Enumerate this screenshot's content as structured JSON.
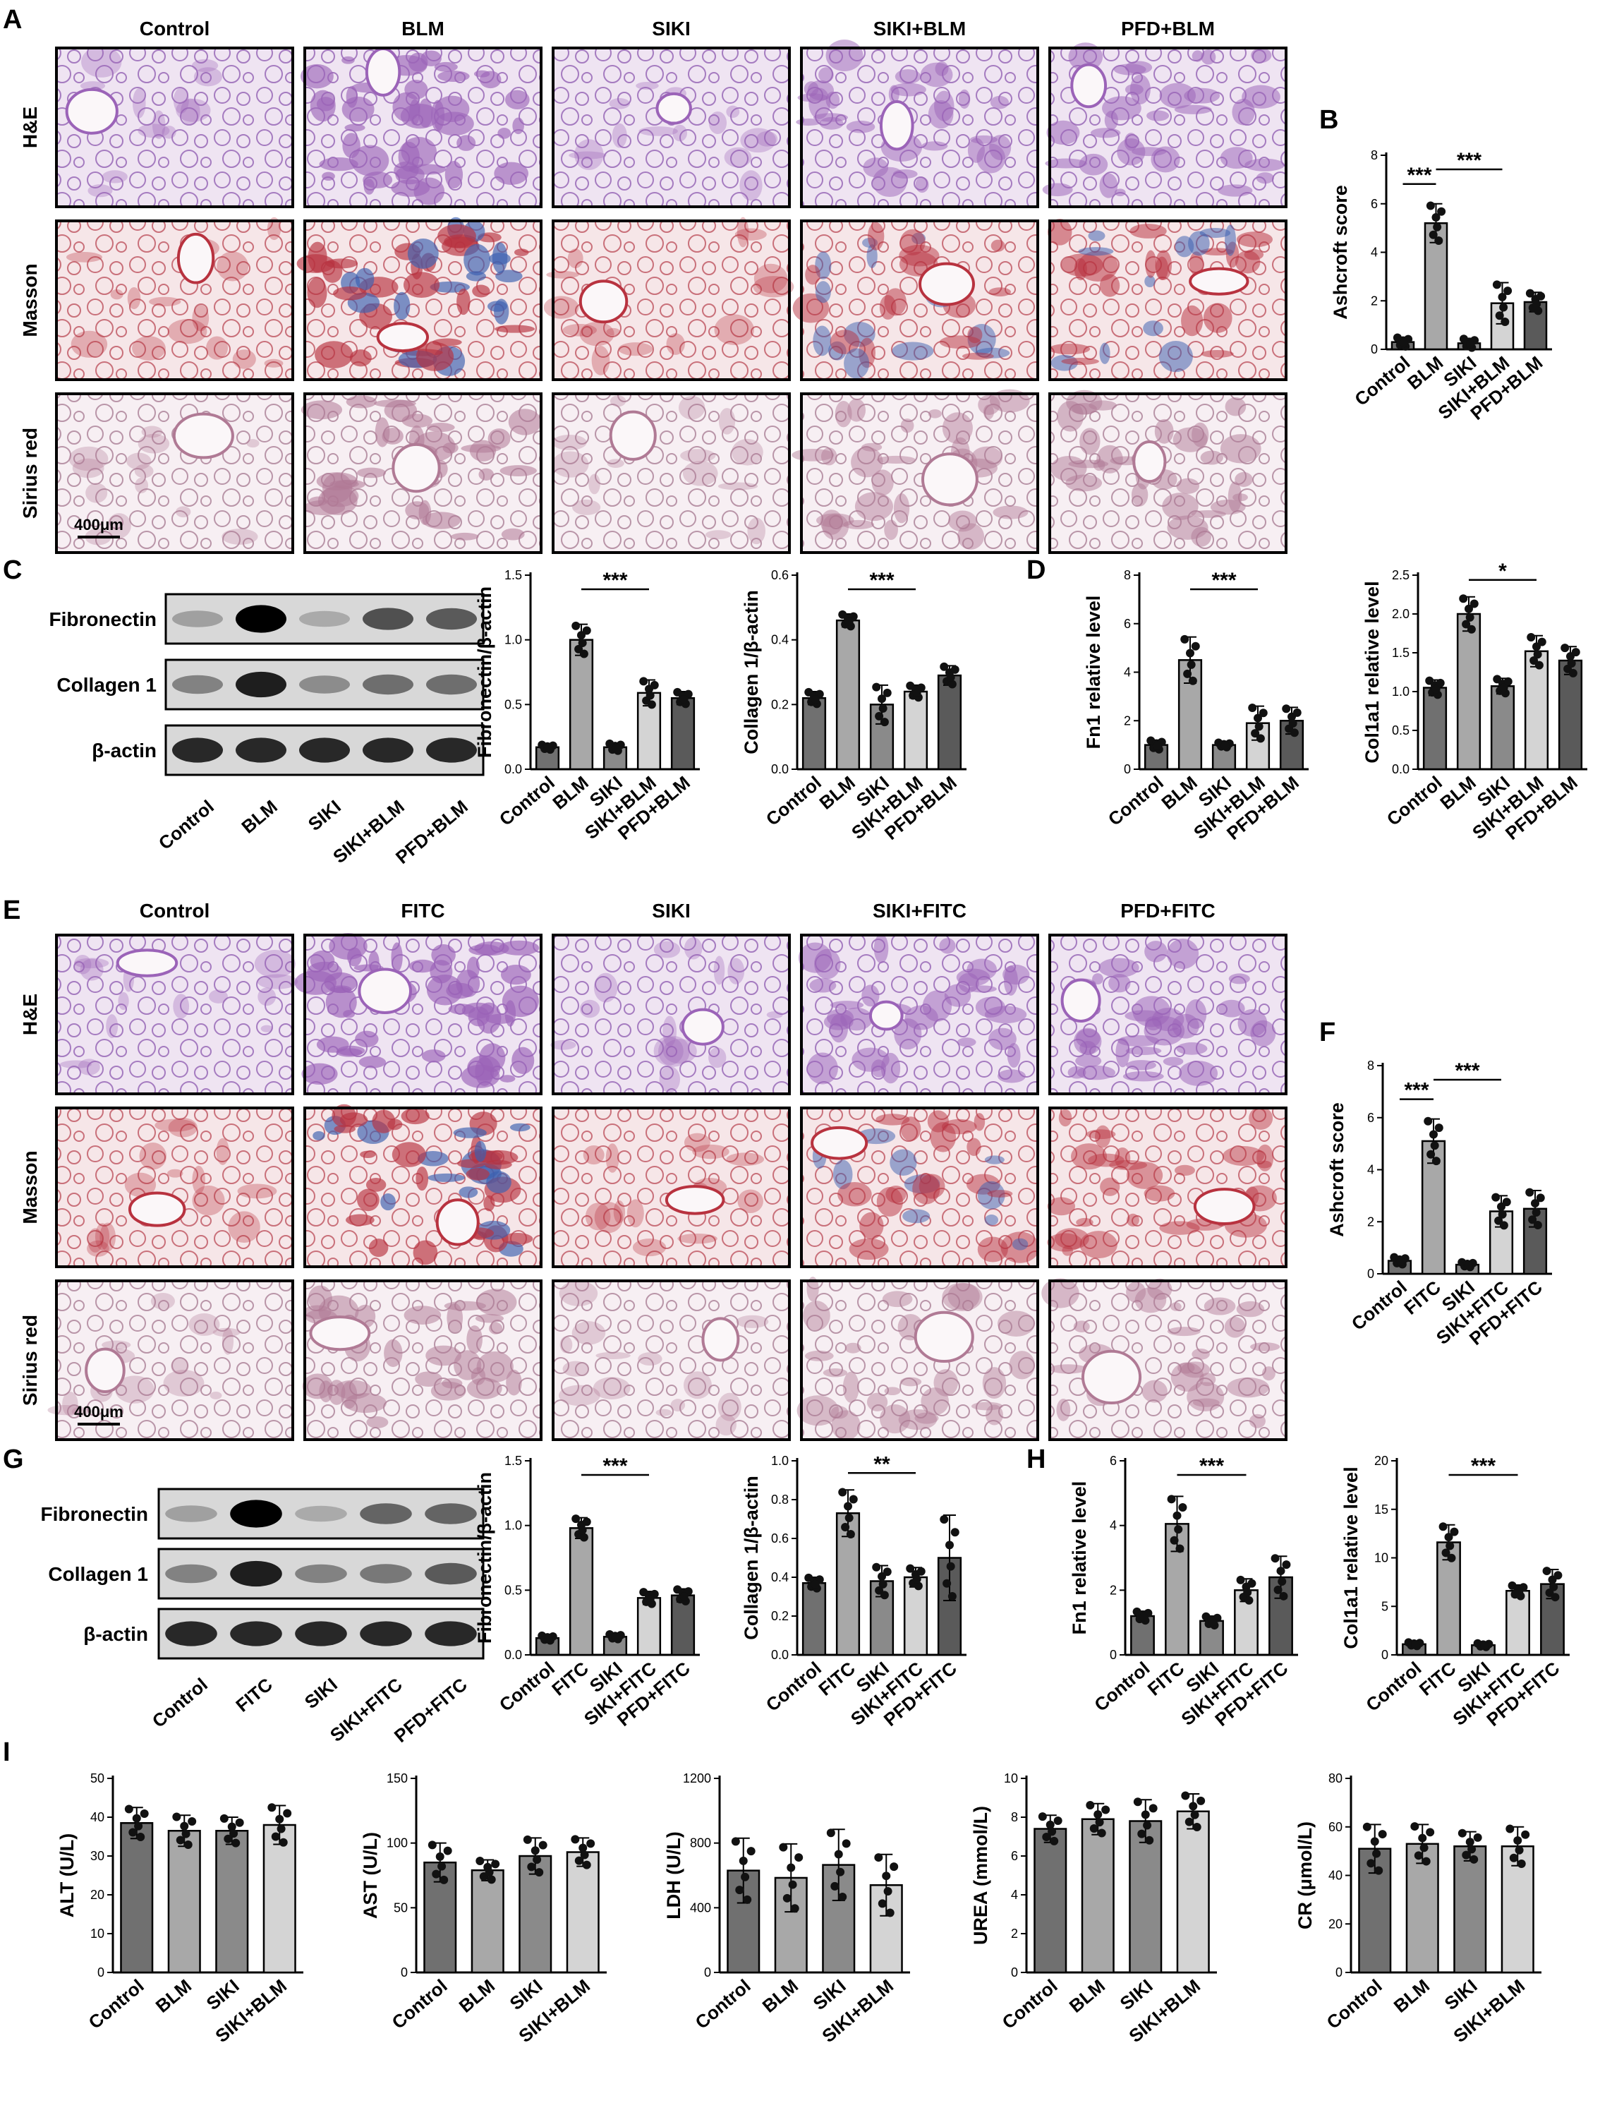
{
  "colors": {
    "he_bg": "#e9dcef",
    "he_tissue": "#9b63b8",
    "masson_bg": "#f1dde0",
    "masson_tissue": "#b8323f",
    "masson_blue": "#3b5fb0",
    "sirius_bg": "#f3e9ee",
    "sirius_tissue": "#b07a95",
    "bar_colors": [
      "#707070",
      "#a8a8a8",
      "#8a8a8a",
      "#d4d4d4",
      "#5a5a5a"
    ]
  },
  "panels": {
    "A": {
      "label": "A",
      "columns": [
        "Control",
        "BLM",
        "SIKI",
        "SIKI+BLM",
        "PFD+BLM"
      ],
      "rows": [
        "H&E",
        "Masson",
        "Sirius red"
      ],
      "scale_bar": "400μm",
      "intensity": [
        [
          0.15,
          0.85,
          0.15,
          0.55,
          0.6
        ],
        [
          0.15,
          0.9,
          0.15,
          0.55,
          0.6
        ],
        [
          0.15,
          0.7,
          0.15,
          0.5,
          0.55
        ]
      ]
    },
    "C": {
      "label": "C",
      "bands": [
        "Fibronectin",
        "Collagen 1",
        "β-actin"
      ],
      "lanes": [
        "Control",
        "BLM",
        "SIKI",
        "SIKI+BLM",
        "PFD+BLM"
      ],
      "band_intensity": [
        [
          0.2,
          1.0,
          0.15,
          0.6,
          0.55
        ],
        [
          0.35,
          0.85,
          0.3,
          0.45,
          0.45
        ],
        [
          0.8,
          0.8,
          0.8,
          0.8,
          0.8
        ]
      ]
    },
    "E": {
      "label": "E",
      "columns": [
        "Control",
        "FITC",
        "SIKI",
        "SIKI+FITC",
        "PFD+FITC"
      ],
      "rows": [
        "H&E",
        "Masson",
        "Sirius red"
      ],
      "scale_bar": "400μm",
      "intensity": [
        [
          0.15,
          0.9,
          0.15,
          0.6,
          0.6
        ],
        [
          0.15,
          0.9,
          0.15,
          0.55,
          0.5
        ],
        [
          0.15,
          0.6,
          0.15,
          0.45,
          0.5
        ]
      ]
    },
    "G": {
      "label": "G",
      "bands": [
        "Fibronectin",
        "Collagen 1",
        "β-actin"
      ],
      "lanes": [
        "Control",
        "FITC",
        "SIKI",
        "SIKI+FITC",
        "PFD+FITC"
      ],
      "band_intensity": [
        [
          0.2,
          1.0,
          0.15,
          0.5,
          0.5
        ],
        [
          0.35,
          0.85,
          0.35,
          0.4,
          0.55
        ],
        [
          0.8,
          0.8,
          0.8,
          0.8,
          0.8
        ]
      ]
    },
    "B_label": "B",
    "D_label": "D",
    "F_label": "F",
    "H_label": "H",
    "I_label": "I"
  },
  "chart_data": [
    {
      "id": "B",
      "type": "bar",
      "categories": [
        "Control",
        "BLM",
        "SIKI",
        "SIKI+BLM",
        "PFD+BLM"
      ],
      "values": [
        0.3,
        5.2,
        0.25,
        1.9,
        1.95
      ],
      "errors": [
        0.2,
        0.8,
        0.2,
        0.85,
        0.4
      ],
      "ylabel": "Ashcroft score",
      "ylim": [
        0,
        8
      ],
      "yticks": [
        0,
        2,
        4,
        6,
        8
      ],
      "sig": [
        {
          "from": 0,
          "to": 1,
          "label": "***"
        },
        {
          "from": 1,
          "to": 3,
          "label": "***"
        }
      ]
    },
    {
      "id": "C1",
      "type": "bar",
      "categories": [
        "Control",
        "BLM",
        "SIKI",
        "SIKI+BLM",
        "PFD+BLM"
      ],
      "values": [
        0.17,
        1.0,
        0.17,
        0.59,
        0.55
      ],
      "errors": [
        0.02,
        0.12,
        0.03,
        0.1,
        0.05
      ],
      "ylabel": "Fibronectin/β-actin",
      "ylim": [
        0,
        1.5
      ],
      "yticks": [
        0.0,
        0.5,
        1.0,
        1.5
      ],
      "sig": [
        {
          "from": 1,
          "to": 3,
          "label": "***"
        }
      ]
    },
    {
      "id": "C2",
      "type": "bar",
      "categories": [
        "Control",
        "BLM",
        "SIKI",
        "SIKI+BLM",
        "PFD+BLM"
      ],
      "values": [
        0.22,
        0.46,
        0.2,
        0.24,
        0.29
      ],
      "errors": [
        0.02,
        0.02,
        0.06,
        0.02,
        0.03
      ],
      "ylabel": "Collagen 1/β-actin",
      "ylim": [
        0,
        0.6
      ],
      "yticks": [
        0.0,
        0.2,
        0.4,
        0.6
      ],
      "sig": [
        {
          "from": 1,
          "to": 3,
          "label": "***"
        }
      ]
    },
    {
      "id": "D1",
      "type": "bar",
      "categories": [
        "Control",
        "BLM",
        "SIKI",
        "SIKI+BLM",
        "PFD+BLM"
      ],
      "values": [
        1.0,
        4.5,
        1.0,
        1.9,
        2.0
      ],
      "errors": [
        0.2,
        0.95,
        0.1,
        0.7,
        0.55
      ],
      "ylabel": "Fn1 relative level",
      "ylim": [
        0,
        8
      ],
      "yticks": [
        0,
        2,
        4,
        6,
        8
      ],
      "sig": [
        {
          "from": 1,
          "to": 3,
          "label": "***"
        }
      ]
    },
    {
      "id": "D2",
      "type": "bar",
      "categories": [
        "Control",
        "BLM",
        "SIKI",
        "SIKI+BLM",
        "PFD+BLM"
      ],
      "values": [
        1.05,
        2.0,
        1.07,
        1.52,
        1.4
      ],
      "errors": [
        0.1,
        0.22,
        0.1,
        0.2,
        0.18
      ],
      "ylabel": "Col1a1 relative level",
      "ylim": [
        0,
        2.5
      ],
      "yticks": [
        0.0,
        0.5,
        1.0,
        1.5,
        2.0,
        2.5
      ],
      "sig": [
        {
          "from": 1,
          "to": 3,
          "label": "*"
        }
      ]
    },
    {
      "id": "F",
      "type": "bar",
      "categories": [
        "Control",
        "FITC",
        "SIKI",
        "SIKI+FITC",
        "PFD+FITC"
      ],
      "values": [
        0.5,
        5.1,
        0.35,
        2.4,
        2.5
      ],
      "errors": [
        0.15,
        0.85,
        0.1,
        0.6,
        0.7
      ],
      "ylabel": "Ashcroft score",
      "ylim": [
        0,
        8
      ],
      "yticks": [
        0,
        2,
        4,
        6,
        8
      ],
      "sig": [
        {
          "from": 0,
          "to": 1,
          "label": "***"
        },
        {
          "from": 1,
          "to": 3,
          "label": "***"
        }
      ]
    },
    {
      "id": "G1",
      "type": "bar",
      "categories": [
        "Control",
        "FITC",
        "SIKI",
        "SIKI+FITC",
        "PFD+FITC"
      ],
      "values": [
        0.13,
        0.98,
        0.14,
        0.44,
        0.46
      ],
      "errors": [
        0.02,
        0.08,
        0.02,
        0.05,
        0.05
      ],
      "ylabel": "Fibronectin/β-actin",
      "ylim": [
        0,
        1.5
      ],
      "yticks": [
        0.0,
        0.5,
        1.0,
        1.5
      ],
      "sig": [
        {
          "from": 1,
          "to": 3,
          "label": "***"
        }
      ]
    },
    {
      "id": "G2",
      "type": "bar",
      "categories": [
        "Control",
        "FITC",
        "SIKI",
        "SIKI+FITC",
        "PFD+FITC"
      ],
      "values": [
        0.37,
        0.73,
        0.38,
        0.4,
        0.5
      ],
      "errors": [
        0.03,
        0.12,
        0.08,
        0.05,
        0.22
      ],
      "ylabel": "Collagen 1/β-actin",
      "ylim": [
        0,
        1.0
      ],
      "yticks": [
        0.0,
        0.2,
        0.4,
        0.6,
        0.8,
        1.0
      ],
      "sig": [
        {
          "from": 1,
          "to": 3,
          "label": "**"
        }
      ]
    },
    {
      "id": "H1",
      "type": "bar",
      "categories": [
        "Control",
        "FITC",
        "SIKI",
        "SIKI+FITC",
        "PFD+FITC"
      ],
      "values": [
        1.2,
        4.05,
        1.05,
        2.0,
        2.4
      ],
      "errors": [
        0.15,
        0.85,
        0.15,
        0.35,
        0.65
      ],
      "ylabel": "Fn1 relative level",
      "ylim": [
        0,
        6
      ],
      "yticks": [
        0,
        2,
        4,
        6
      ],
      "sig": [
        {
          "from": 1,
          "to": 3,
          "label": "***"
        }
      ]
    },
    {
      "id": "H2",
      "type": "bar",
      "categories": [
        "Control",
        "FITC",
        "SIKI",
        "SIKI+FITC",
        "PFD+FITC"
      ],
      "values": [
        1.1,
        11.6,
        1.0,
        6.6,
        7.3
      ],
      "errors": [
        0.2,
        1.8,
        0.2,
        0.6,
        1.5
      ],
      "ylabel": "Col1a1 relative level",
      "ylim": [
        0,
        20
      ],
      "yticks": [
        0,
        5,
        10,
        15,
        20
      ],
      "sig": [
        {
          "from": 1,
          "to": 3,
          "label": "***"
        }
      ]
    },
    {
      "id": "I1",
      "type": "bar",
      "categories": [
        "Control",
        "BLM",
        "SIKI",
        "SIKI+BLM"
      ],
      "values": [
        38.5,
        36.5,
        36.5,
        38.0
      ],
      "errors": [
        4.0,
        4.0,
        3.5,
        5.0
      ],
      "ylabel": "ALT (U/L)",
      "ylim": [
        0,
        50
      ],
      "yticks": [
        0,
        10,
        20,
        30,
        40,
        50
      ],
      "sig": []
    },
    {
      "id": "I2",
      "type": "bar",
      "categories": [
        "Control",
        "BLM",
        "SIKI",
        "SIKI+BLM"
      ],
      "values": [
        85,
        79,
        90,
        93
      ],
      "errors": [
        15,
        8,
        14,
        11
      ],
      "ylabel": "AST (U/L)",
      "ylim": [
        0,
        150
      ],
      "yticks": [
        0,
        50,
        100,
        150
      ],
      "sig": []
    },
    {
      "id": "I3",
      "type": "bar",
      "categories": [
        "Control",
        "BLM",
        "SIKI",
        "SIKI+BLM"
      ],
      "values": [
        630,
        585,
        665,
        540
      ],
      "errors": [
        200,
        210,
        220,
        190
      ],
      "ylabel": "LDH (U/L)",
      "ylim": [
        0,
        1200
      ],
      "yticks": [
        0,
        400,
        800,
        1200
      ],
      "sig": []
    },
    {
      "id": "I4",
      "type": "bar",
      "categories": [
        "Control",
        "BLM",
        "SIKI",
        "SIKI+BLM"
      ],
      "values": [
        7.4,
        7.9,
        7.8,
        8.3
      ],
      "errors": [
        0.7,
        0.8,
        1.1,
        0.9
      ],
      "ylabel": "UREA (mmol/L)",
      "ylim": [
        0,
        10
      ],
      "yticks": [
        0,
        2,
        4,
        6,
        8,
        10
      ],
      "sig": []
    },
    {
      "id": "I5",
      "type": "bar",
      "categories": [
        "Control",
        "BLM",
        "SIKI",
        "SIKI+BLM"
      ],
      "values": [
        51,
        53,
        52,
        52
      ],
      "errors": [
        10,
        8,
        6,
        8
      ],
      "ylabel": "CR (μmol/L)",
      "ylim": [
        0,
        80
      ],
      "yticks": [
        0,
        20,
        40,
        60,
        80
      ],
      "sig": []
    }
  ]
}
